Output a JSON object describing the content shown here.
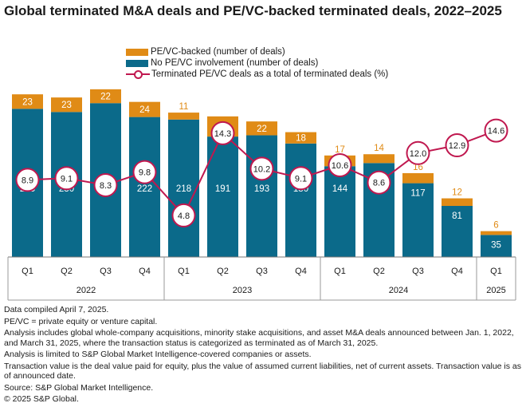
{
  "chart_data": {
    "type": "bar",
    "title": "Global terminated M&A deals and PE/VC-backed terminated deals, 2022–2025",
    "categories": [
      "Q1",
      "Q2",
      "Q3",
      "Q4",
      "Q1",
      "Q2",
      "Q3",
      "Q4",
      "Q1",
      "Q2",
      "Q3",
      "Q4",
      "Q1"
    ],
    "years": [
      {
        "label": "2022",
        "span": 4
      },
      {
        "label": "2023",
        "span": 4
      },
      {
        "label": "2024",
        "span": 4
      },
      {
        "label": "2025",
        "span": 1
      }
    ],
    "series": [
      {
        "name": "No PE/VC involvement (number of deals)",
        "kind": "stacked-bar",
        "color": "#0b6a8a",
        "values": [
          235,
          230,
          244,
          222,
          218,
          191,
          193,
          180,
          144,
          149,
          117,
          81,
          35
        ]
      },
      {
        "name": "PE/VC-backed (number of deals)",
        "kind": "stacked-bar",
        "color": "#e08b16",
        "values": [
          23,
          23,
          22,
          24,
          11,
          32,
          22,
          18,
          17,
          14,
          16,
          12,
          6
        ]
      },
      {
        "name": "Terminated PE/VC deals as a total of terminated deals (%)",
        "kind": "line",
        "color": "#c0184f",
        "values": [
          8.9,
          9.1,
          8.3,
          9.8,
          4.8,
          14.3,
          10.2,
          9.1,
          10.6,
          8.6,
          12.0,
          12.9,
          14.6
        ]
      }
    ],
    "legend_order": [
      1,
      0,
      2
    ],
    "ylim_bars": [
      0,
      270
    ],
    "ylim_line": [
      0,
      20
    ]
  },
  "notes": [
    "Data compiled April 7, 2025.",
    "PE/VC = private equity or venture capital.",
    "Analysis includes global whole-company acquisitions, minority stake acquisitions, and asset M&A deals announced between Jan. 1, 2022, and March 31, 2025, where the transaction status is categorized as terminated as of March 31, 2025.",
    "Analysis is limited to S&P Global Market Intelligence-covered companies or assets.",
    "Transaction value is the deal value paid for equity, plus the value of assumed current liabilities, net of current assets. Transaction value is as of announced date.",
    "Source: S&P Global Market Intelligence.",
    "© 2025 S&P Global."
  ]
}
